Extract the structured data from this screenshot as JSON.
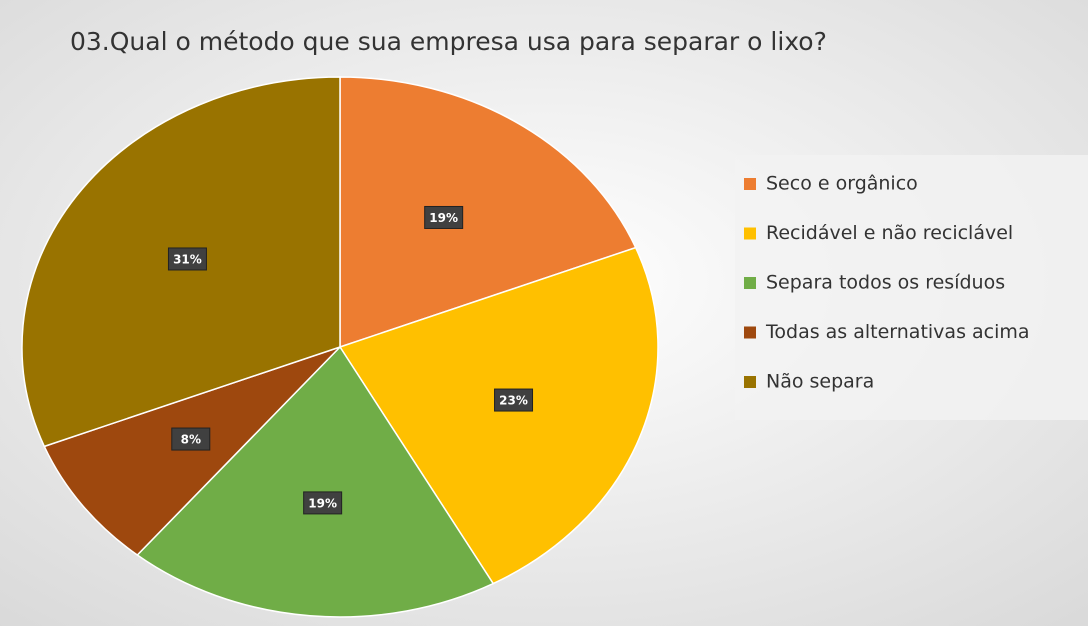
{
  "chart_data": {
    "type": "pie",
    "title": "03.Qual o método que sua empresa usa para separar o lixo?",
    "categories": [
      "Seco e orgânico",
      "Recidável e não reciclável",
      "Separa todos os resíduos",
      "Todas as alternativas acima",
      "Não separa"
    ],
    "values": [
      19,
      23,
      19,
      8,
      31
    ],
    "value_labels": [
      "19%",
      "23%",
      "19%",
      "8%",
      "31%"
    ],
    "colors": [
      "#ED7D31",
      "#FFC000",
      "#70AD47",
      "#9E480E",
      "#997300"
    ],
    "legend": "right"
  }
}
